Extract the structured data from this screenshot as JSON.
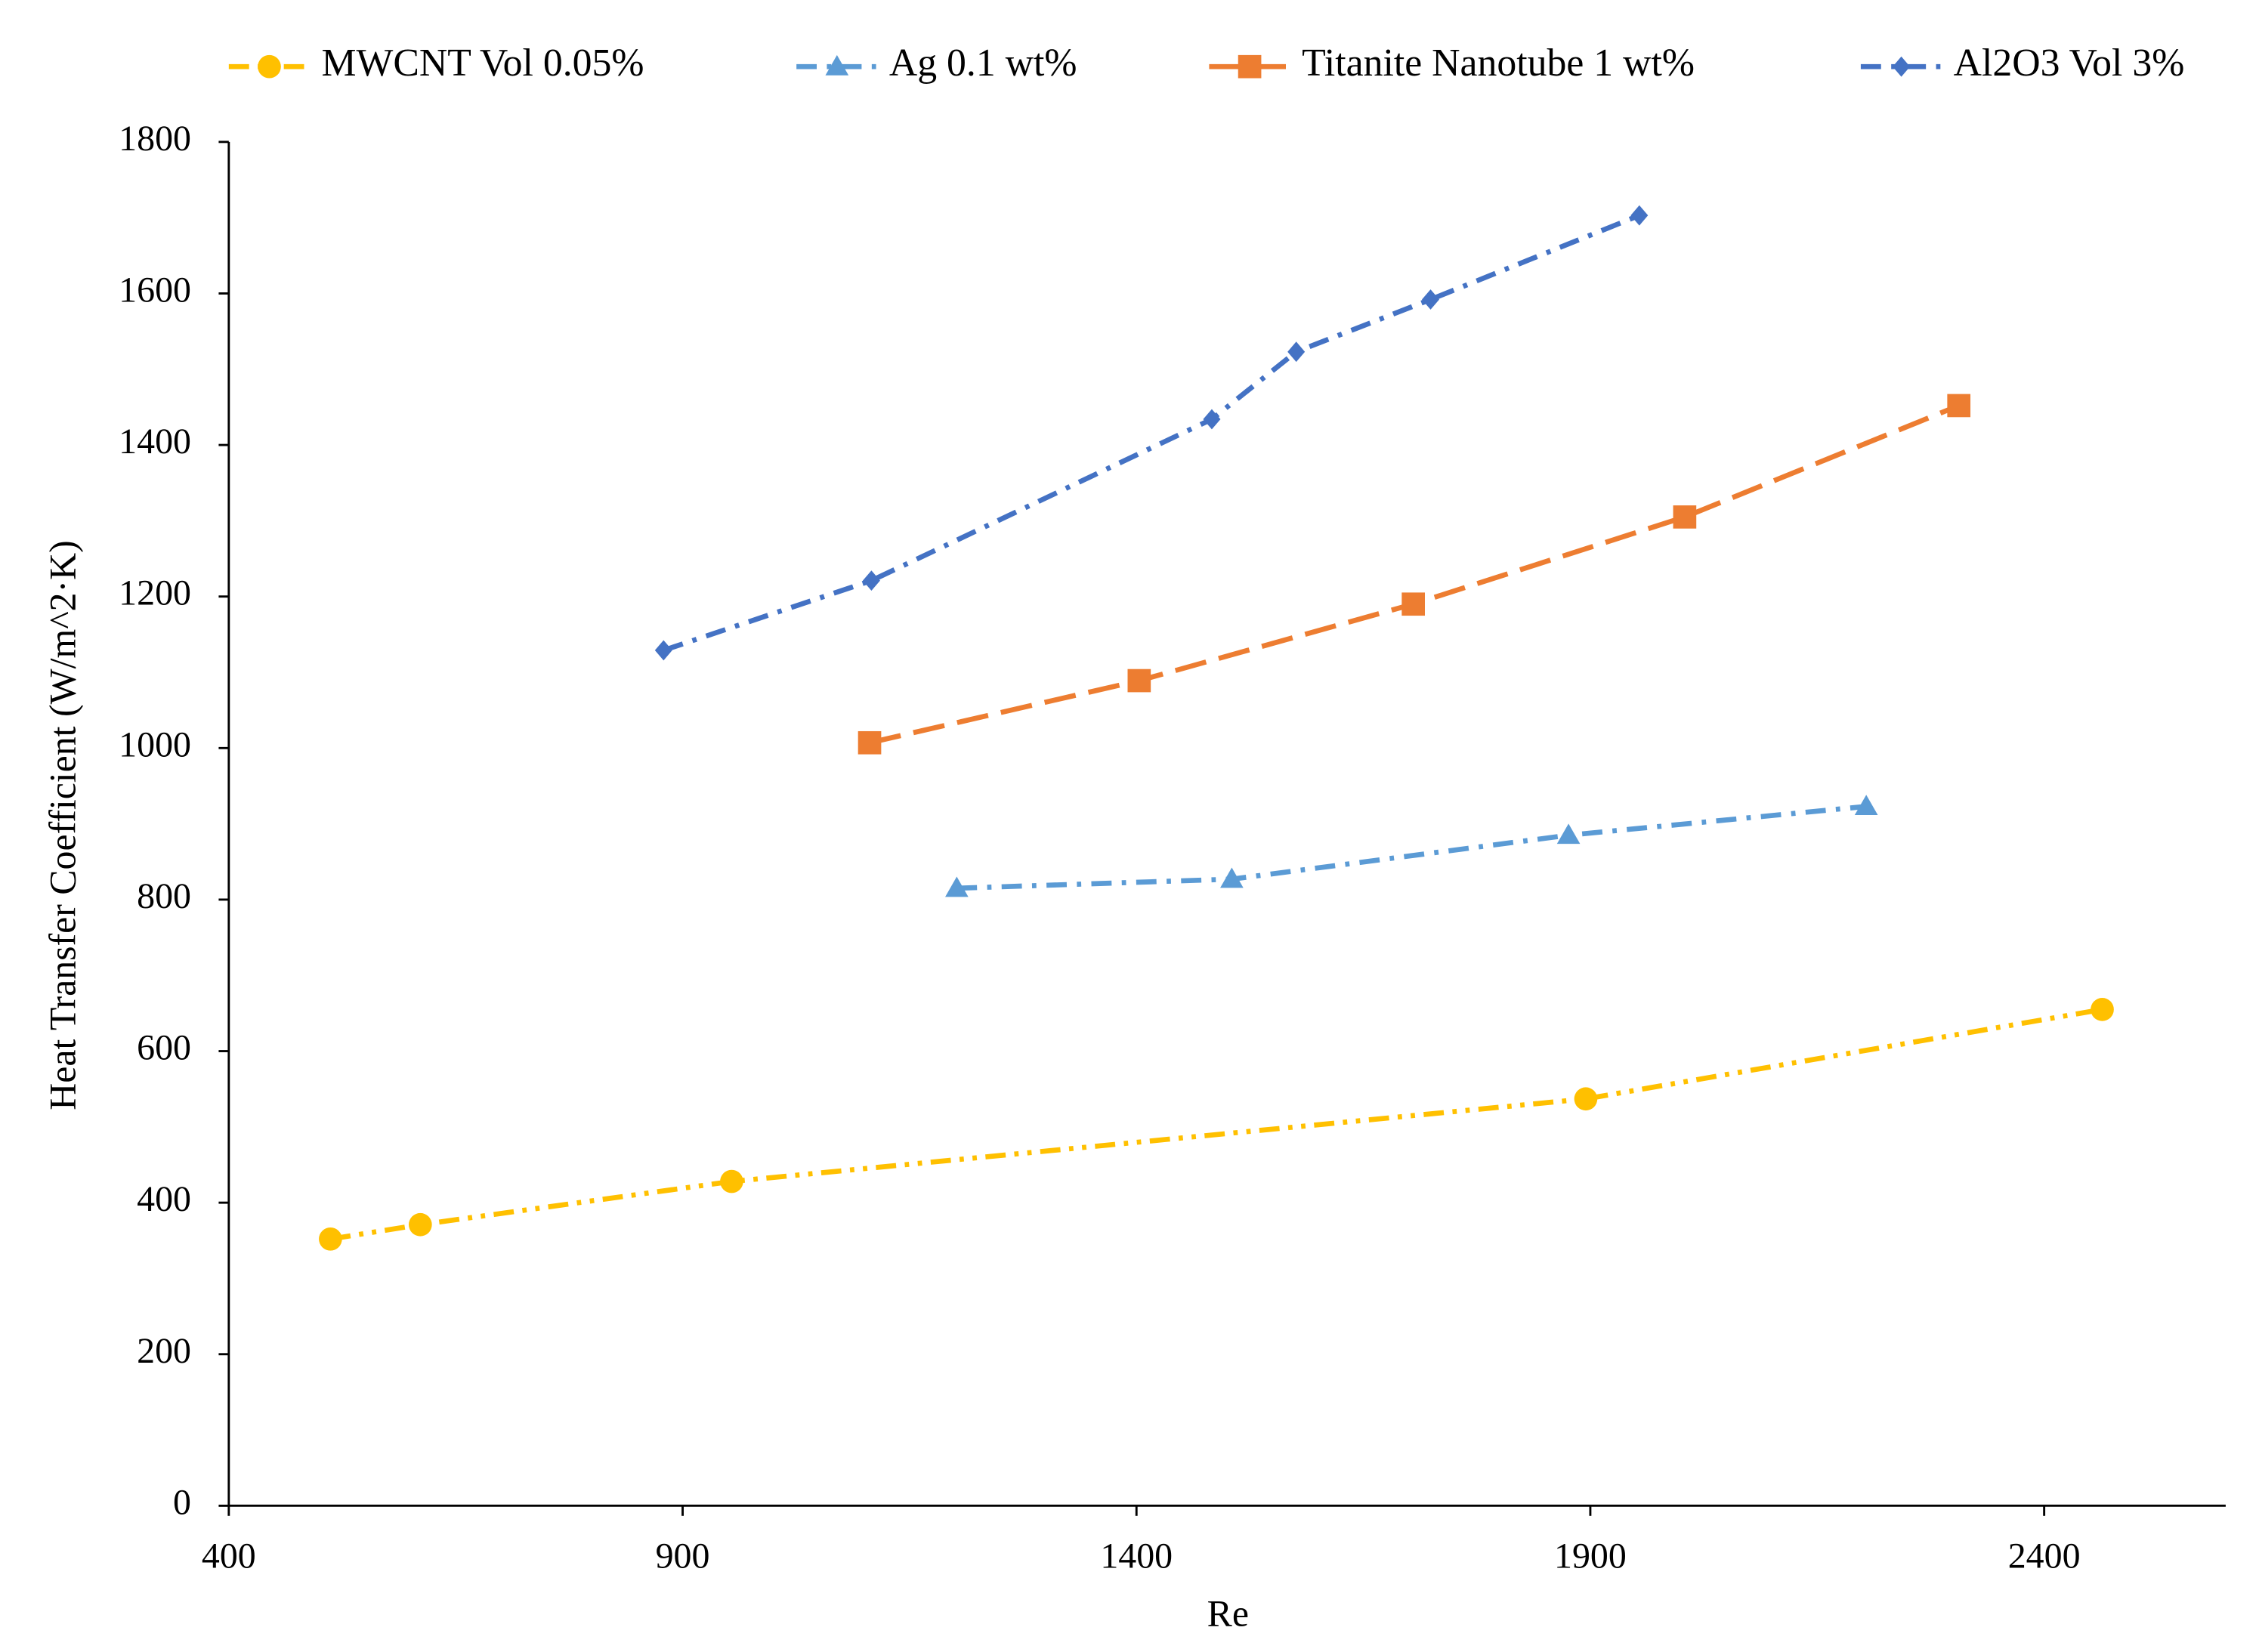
{
  "chart_data": {
    "type": "line",
    "x_label": "Re",
    "y_label": "Heat Transfer Coefficient  (W/m^2·K)",
    "xlim": [
      400,
      2600
    ],
    "xticks": [
      400,
      900,
      1400,
      1900,
      2400
    ],
    "ylim": [
      0,
      1800
    ],
    "yticks": [
      0,
      200,
      400,
      600,
      800,
      1000,
      1200,
      1400,
      1600,
      1800
    ],
    "legend": "top",
    "series": [
      {
        "name": "MWCNT Vol 0.05%",
        "color": "#FFC000",
        "marker": "circle",
        "line_style": "dash-dot-dot",
        "x": [
          512,
          611,
          954,
          1895,
          2464
        ],
        "values": [
          352,
          371,
          428,
          537,
          655
        ]
      },
      {
        "name": "Ag 0.1 wt%",
        "color": "#5B9BD5",
        "marker": "triangle",
        "line_style": "dash-dot",
        "x": [
          1202,
          1505,
          1876,
          2204
        ],
        "values": [
          815,
          827,
          885,
          923
        ]
      },
      {
        "name": "Titanite Nanotube 1 wt%",
        "color": "#ED7D31",
        "marker": "square",
        "line_style": "dash",
        "x": [
          1106,
          1403,
          1705,
          2004,
          2306
        ],
        "values": [
          1007,
          1089,
          1190,
          1305,
          1452
        ]
      },
      {
        "name": "Al2O3 Vol 3%",
        "color": "#4472C4",
        "marker": "diamond",
        "line_style": "dash-dot",
        "x": [
          879,
          1108,
          1483,
          1576,
          1724,
          1954
        ],
        "values": [
          1129,
          1221,
          1434,
          1523,
          1592,
          1703
        ]
      }
    ]
  }
}
